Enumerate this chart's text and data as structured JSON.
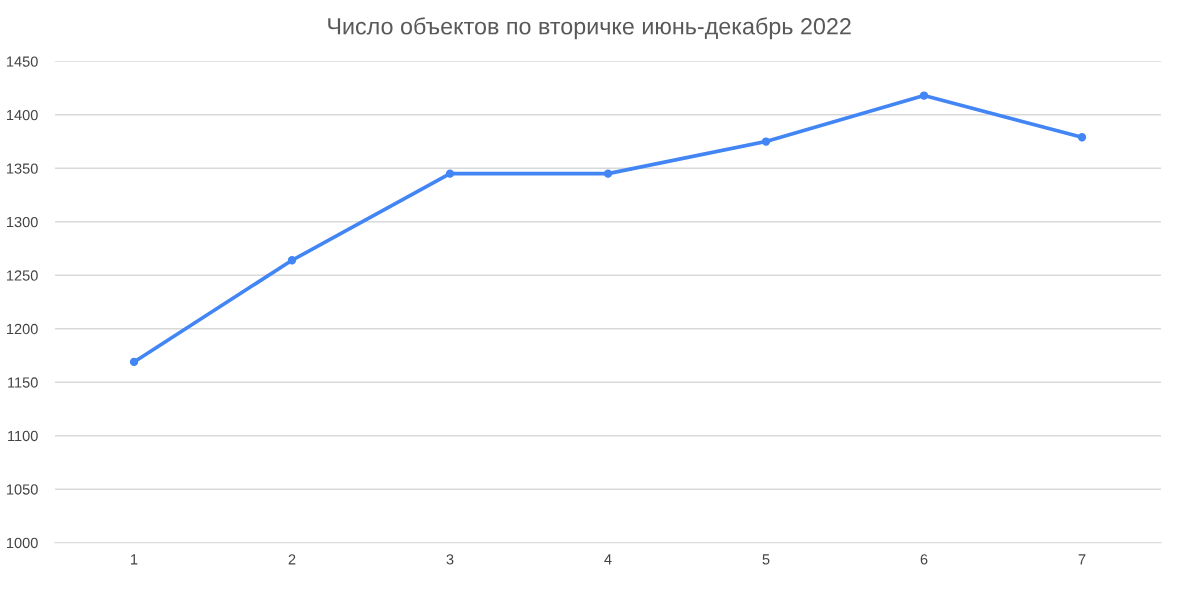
{
  "chart_data": {
    "type": "line",
    "title": "Число объектов по вторичке июнь-декабрь 2022",
    "categories": [
      "1",
      "2",
      "3",
      "4",
      "5",
      "6",
      "7"
    ],
    "series": [
      {
        "color": "#4285f4",
        "values": [
          1169,
          1264,
          1345,
          1345,
          1375,
          1418,
          1379
        ]
      }
    ],
    "ylim": [
      1000,
      1450
    ],
    "yticks": [
      1000,
      1050,
      1100,
      1150,
      1200,
      1250,
      1300,
      1350,
      1400,
      1450
    ],
    "grid": "y",
    "marker": "circle",
    "line_style": "solid"
  }
}
